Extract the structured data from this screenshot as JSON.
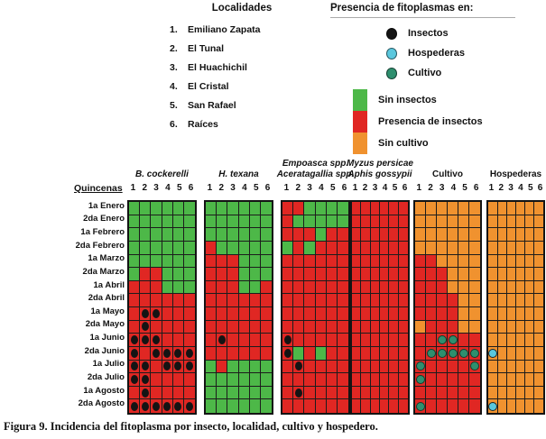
{
  "figure": {
    "caption": "Figura 9. Incidencia del fitoplasma por insecto, localidad, cultivo y hospedero."
  },
  "palette": {
    "G": "#4db848",
    "R": "#e02723",
    "O": "#f0922f",
    "insectos": "#141414",
    "hospederas": "#5ac7dd",
    "cultivo": "#2e8f6e"
  },
  "legend": {
    "localidades": {
      "title": "Localidades",
      "items": [
        {
          "num": "1.",
          "name": "Emiliano Zapata"
        },
        {
          "num": "2.",
          "name": "El Tunal"
        },
        {
          "num": "3.",
          "name": "El Huachichil"
        },
        {
          "num": "4.",
          "name": "El Cristal"
        },
        {
          "num": "5.",
          "name": "San Rafael"
        },
        {
          "num": "6.",
          "name": "Raíces"
        }
      ]
    },
    "presencia": {
      "title": "Presencia de fitoplasmas en:",
      "dots": [
        {
          "label": "Insectos",
          "color_key": "insectos"
        },
        {
          "label": "Hospederas",
          "color_key": "hospederas"
        },
        {
          "label": "Cultivo",
          "color_key": "cultivo"
        }
      ]
    },
    "cell_colors": [
      {
        "label": "Sin insectos",
        "color_key": "G"
      },
      {
        "label": "Presencia de insectos",
        "color_key": "R"
      },
      {
        "label": "Sin cultivo",
        "color_key": "O"
      }
    ]
  },
  "chart_data": {
    "type": "heatmap",
    "rows_axis_label": "Quincenas",
    "row_labels": [
      "1a Enero",
      "2da Enero",
      "1a Febrero",
      "2da Febrero",
      "1a Marzo",
      "2da Marzo",
      "1a Abril",
      "2da Abril",
      "1a Mayo",
      "2da Mayo",
      "1a Junio",
      "2da Junio",
      "1a Julio",
      "2da Julio",
      "1a Agosto",
      "2da Agosto"
    ],
    "column_labels": [
      "1",
      "2",
      "3",
      "4",
      "5",
      "6"
    ],
    "cell_legend": {
      "G": "Sin insectos",
      "R": "Presencia de insectos",
      "O": "Sin cultivo"
    },
    "dot_legend": {
      "insectos": "Presencia de fitoplasmas en insectos",
      "hospederas": "Presencia de fitoplasmas en hospederas",
      "cultivo": "Presencia de fitoplasmas en cultivo"
    },
    "groups": [
      {
        "title_lines": [
          {
            "text": "B. cockerelli",
            "italic": true
          }
        ],
        "dot_color_key": "insectos",
        "cells": [
          "GGGGGG",
          "GGGGGG",
          "GGGGGG",
          "GGGGGG",
          "GGGGGG",
          "GRRGGG",
          "RRRGGG",
          "RRRRRR",
          "RRRRRR",
          "RRRRRR",
          "RRRRRR",
          "RRRRRR",
          "RRRRRR",
          "RRRRRR",
          "RRRRRR",
          "RRRRRR"
        ],
        "dots": [
          [
            9,
            2
          ],
          [
            9,
            3
          ],
          [
            10,
            2
          ],
          [
            11,
            1
          ],
          [
            11,
            2
          ],
          [
            11,
            3
          ],
          [
            12,
            1
          ],
          [
            12,
            3
          ],
          [
            12,
            4
          ],
          [
            12,
            5
          ],
          [
            12,
            6
          ],
          [
            13,
            1
          ],
          [
            13,
            2
          ],
          [
            13,
            4
          ],
          [
            13,
            5
          ],
          [
            13,
            6
          ],
          [
            14,
            1
          ],
          [
            14,
            2
          ],
          [
            15,
            2
          ],
          [
            16,
            1
          ],
          [
            16,
            2
          ],
          [
            16,
            3
          ],
          [
            16,
            4
          ],
          [
            16,
            5
          ],
          [
            16,
            6
          ]
        ]
      },
      {
        "title_lines": [
          {
            "text": "H. texana",
            "italic": true
          }
        ],
        "dot_color_key": "insectos",
        "cells": [
          "GGGGGG",
          "GGGGGG",
          "GGGGGG",
          "RGGGGG",
          "RRRGGG",
          "RRRGGG",
          "RRRGGR",
          "RRRRRR",
          "RRRRRR",
          "RRRRRR",
          "RRRRRR",
          "RRRRRR",
          "GRGGGG",
          "GGGGGG",
          "GGGGGG",
          "GGGGGG"
        ],
        "dots": [
          [
            11,
            2
          ]
        ]
      },
      {
        "title_lines": [
          {
            "text": "Empoasca spp.",
            "italic": true
          },
          {
            "text": "Aceratagallia spp.",
            "italic": true
          }
        ],
        "dot_color_key": "insectos",
        "cells": [
          "RRGGGG",
          "RGGGGG",
          "RRRGRR",
          "GRGRRR",
          "RRRRRR",
          "RRRRRR",
          "RRRRRR",
          "RRRRRR",
          "RRRRRR",
          "RRRRRR",
          "RRRRRR",
          "RGRGRR",
          "RRRRRR",
          "RRRRRR",
          "RRRRRR",
          "RRRRRR"
        ],
        "dots": [
          [
            11,
            1
          ],
          [
            12,
            1
          ],
          [
            13,
            2
          ],
          [
            15,
            2
          ]
        ]
      },
      {
        "title_lines": [
          {
            "text": "Myzus persicae",
            "italic": true
          },
          {
            "text": "Aphis gossypii",
            "italic": true
          }
        ],
        "dot_color_key": "insectos",
        "cells": [
          "RRRRRR",
          "RRRRRR",
          "RRRRRR",
          "RRRRRR",
          "RRRRRR",
          "RRRRRR",
          "RRRRRR",
          "RRRRRR",
          "RRRRRR",
          "RRRRRR",
          "RRRRRR",
          "RRRRRR",
          "RRRRRR",
          "RRRRRR",
          "RRRRRR",
          "RRRRRR"
        ],
        "dots": []
      },
      {
        "title_lines": [
          {
            "text": "Cultivo",
            "italic": false
          }
        ],
        "dot_color_key": "cultivo",
        "cells": [
          "OOOOOO",
          "OOOOOO",
          "OOOOOO",
          "OOOOOO",
          "RROOOO",
          "RRROOO",
          "RRROOO",
          "RRRROO",
          "RRRROO",
          "ORRROO",
          "RRRRRR",
          "RRRRRR",
          "RRRRRR",
          "RRRRRR",
          "RRRRRR",
          "RRRRRR"
        ],
        "dots": [
          [
            11,
            3
          ],
          [
            11,
            4
          ],
          [
            12,
            2
          ],
          [
            12,
            3
          ],
          [
            12,
            4
          ],
          [
            12,
            5
          ],
          [
            12,
            6
          ],
          [
            13,
            1
          ],
          [
            13,
            6
          ],
          [
            14,
            1
          ],
          [
            16,
            1
          ]
        ]
      },
      {
        "title_lines": [
          {
            "text": "Hospederas",
            "italic": false
          }
        ],
        "dot_color_key": "hospederas",
        "cells": [
          "OOOOOO",
          "OOOOOO",
          "OOOOOO",
          "OOOOOO",
          "OOOOOO",
          "OOOOOO",
          "OOOOOO",
          "OOOOOO",
          "OOOOOO",
          "OOOOOO",
          "OOOOOO",
          "OOOOOO",
          "OOOOOO",
          "OOOOOO",
          "OOOOOO",
          "OOOOOO"
        ],
        "dots": [
          [
            12,
            1
          ],
          [
            16,
            1
          ]
        ]
      }
    ]
  }
}
